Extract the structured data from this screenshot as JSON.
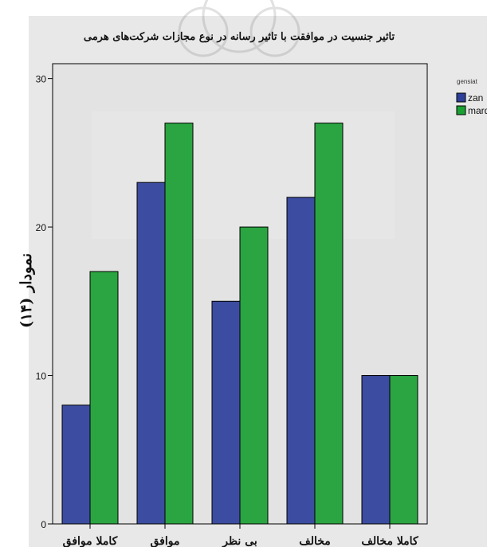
{
  "page": {
    "caption": "نمودار (۱۴)"
  },
  "chart_data": {
    "type": "bar",
    "title": "تاثیر جنسیت در موافقت با تاثیر رسانه در نوع مجازات شرکت‌های هرمی",
    "categories": [
      "کاملا موافق",
      "موافق",
      "بی نظر",
      "مخالف",
      "کاملا مخالف"
    ],
    "series": [
      {
        "name": "zan",
        "values": [
          8,
          23,
          15,
          22,
          10
        ],
        "color": "#2e3f9a"
      },
      {
        "name": "mard",
        "values": [
          17,
          27,
          20,
          27,
          10
        ],
        "color": "#1aa033"
      }
    ],
    "legend": {
      "title": "gensiat",
      "placement": "right"
    },
    "ylim": [
      0,
      31
    ],
    "yticks": [
      0,
      10,
      20,
      30
    ],
    "grid": false,
    "xlabel": "",
    "ylabel": "",
    "colors": {
      "plot_background": "#e3e3e3",
      "axis": "#000000"
    }
  }
}
